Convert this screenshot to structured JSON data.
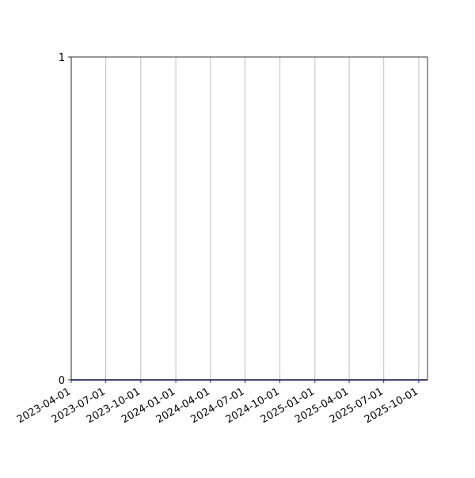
{
  "chart_data": {
    "type": "line",
    "title": "",
    "xlabel": "",
    "ylabel": "",
    "x_type": "date",
    "xlim": [
      "2023-04-01",
      "2025-10-24"
    ],
    "ylim": [
      0,
      1
    ],
    "x_ticks": [
      "2023-04-01",
      "2023-07-01",
      "2023-10-01",
      "2024-01-01",
      "2024-04-01",
      "2024-07-01",
      "2024-10-01",
      "2025-01-01",
      "2025-04-01",
      "2025-07-01",
      "2025-10-01"
    ],
    "y_ticks": [
      "0",
      "1"
    ],
    "grid": "x-only",
    "series": [
      {
        "x": [
          "2023-04-01",
          "2025-10-24"
        ],
        "values": [
          0,
          0
        ],
        "color": "#0000ff"
      }
    ],
    "grid_color": "#b0b0b0"
  }
}
